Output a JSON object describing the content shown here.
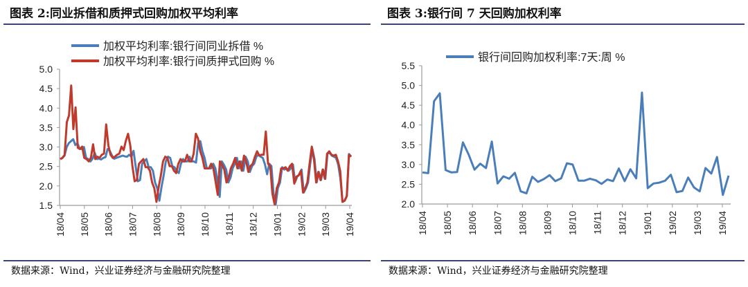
{
  "footer_source": "数据来源：Wind，兴业证券经济与金融研究院整理",
  "colors": {
    "blue": "#4a7ebb",
    "red": "#c0392b",
    "axis": "#9a9a9a",
    "rule": "#3a4373"
  },
  "chart_data": [
    {
      "title": "图表 2:同业拆借和质押式回购加权平均利率",
      "type": "line",
      "x_start": "2018-04",
      "x_end": "2019-04",
      "x_tick_labels": [
        "18/04",
        "18/05",
        "18/06",
        "18/07",
        "18/08",
        "18/09",
        "18/10",
        "18/11",
        "18/12",
        "19/01",
        "19/02",
        "19/03",
        "19/04"
      ],
      "y_tick_labels": [
        "1.5",
        "2.0",
        "2.5",
        "3.0",
        "3.5",
        "4.0",
        "4.5",
        "5.0"
      ],
      "ylim": [
        1.5,
        5.0
      ],
      "grid": false,
      "legend_position": "top",
      "series": [
        {
          "name": "加权平均利率:银行间同业拆借 %",
          "color": "#4a7ebb",
          "values": [
            2.69,
            2.72,
            2.78,
            3.0,
            3.1,
            3.15,
            3.2,
            3.05,
            3.1,
            2.95,
            2.95,
            3.0,
            2.72,
            2.69,
            2.63,
            2.7,
            2.85,
            2.69,
            2.7,
            2.68,
            2.72,
            2.74,
            2.95,
            2.9,
            2.78,
            2.7,
            2.72,
            2.74,
            2.76,
            2.78,
            2.76,
            2.75,
            2.8,
            2.75,
            2.9,
            2.5,
            2.12,
            2.15,
            2.57,
            2.63,
            2.69,
            2.48,
            2.48,
            2.39,
            2.09,
            1.94,
            1.62,
            1.97,
            2.27,
            2.63,
            2.75,
            2.72,
            2.51,
            2.48,
            2.39,
            2.33,
            2.57,
            2.69,
            2.63,
            2.63,
            2.75,
            2.63,
            2.63,
            2.6,
            3.1,
            3.15,
            2.89,
            2.72,
            2.45,
            2.45,
            2.45,
            2.57,
            2.45,
            2.12,
            1.72,
            2.63,
            2.54,
            2.42,
            2.09,
            2.21,
            2.45,
            2.57,
            2.72,
            2.45,
            2.63,
            2.39,
            2.75,
            2.63,
            2.36,
            2.51,
            2.57,
            2.75,
            2.8,
            2.75,
            2.72,
            2.55,
            2.3,
            2.57,
            2.51,
            1.8,
            1.53,
            1.94,
            2.09,
            2.48,
            2.42,
            2.45,
            2.39,
            2.45,
            2.55,
            2.1,
            2.24,
            2.3,
            2.42,
            1.83,
            1.94,
            2.09,
            2.57,
            2.95,
            2.69,
            2.09,
            2.36,
            2.15,
            2.42,
            2.18,
            2.83,
            2.85,
            2.78,
            2.75,
            2.72,
            2.55,
            2.2,
            1.59,
            1.62,
            1.74,
            2.82,
            2.75
          ]
        },
        {
          "name": "加权平均利率:银行间质押式回购 %",
          "color": "#c0392b",
          "values": [
            2.69,
            2.72,
            2.8,
            3.64,
            3.81,
            4.58,
            3.46,
            4.02,
            2.98,
            2.95,
            3.01,
            2.72,
            2.69,
            2.63,
            2.72,
            3.07,
            2.69,
            2.75,
            2.72,
            2.8,
            2.83,
            3.58,
            3.04,
            2.8,
            2.72,
            2.75,
            2.8,
            2.83,
            3.01,
            2.92,
            3.16,
            3.34,
            3.04,
            2.51,
            2.12,
            2.15,
            2.57,
            2.63,
            2.69,
            2.48,
            2.48,
            2.39,
            2.09,
            1.94,
            1.59,
            1.97,
            2.27,
            2.63,
            2.75,
            2.72,
            2.51,
            2.51,
            2.39,
            2.33,
            2.57,
            2.69,
            2.63,
            2.63,
            2.8,
            2.63,
            2.63,
            2.83,
            3.34,
            3.22,
            2.89,
            2.72,
            2.45,
            2.45,
            2.45,
            2.57,
            2.45,
            2.12,
            1.77,
            2.63,
            2.54,
            2.42,
            2.09,
            2.21,
            2.45,
            2.57,
            2.72,
            2.45,
            2.63,
            2.39,
            2.78,
            2.63,
            2.36,
            2.51,
            2.57,
            2.75,
            2.89,
            2.78,
            2.8,
            2.8,
            3.4,
            2.57,
            2.51,
            1.8,
            1.53,
            1.94,
            2.09,
            2.45,
            2.45,
            2.48,
            2.39,
            2.51,
            2.57,
            2.06,
            2.24,
            2.27,
            2.39,
            1.83,
            1.94,
            2.09,
            2.57,
            3.01,
            2.69,
            2.09,
            2.36,
            2.15,
            2.42,
            2.18,
            2.83,
            2.89,
            2.8,
            2.78,
            2.8,
            2.63,
            2.39,
            1.59,
            1.62,
            1.74,
            2.8,
            2.75
          ]
        }
      ]
    },
    {
      "title": "图表 3:银行间 7 天回购加权利率",
      "type": "line",
      "x_start": "2018-04",
      "x_end": "2019-04",
      "x_tick_labels": [
        "18/04",
        "18/05",
        "18/06",
        "18/07",
        "18/08",
        "18/09",
        "18/10",
        "18/11",
        "18/12",
        "19/01",
        "19/02",
        "19/03",
        "19/04"
      ],
      "y_tick_labels": [
        "2.0",
        "2.5",
        "3.0",
        "3.5",
        "4.0",
        "4.5",
        "5.0",
        "5.5"
      ],
      "ylim": [
        2.0,
        5.5
      ],
      "grid": false,
      "legend_position": "top",
      "series": [
        {
          "name": "银行间回购加权利率:7天:周 %",
          "color": "#4a7ebb",
          "values": [
            2.8,
            2.78,
            4.6,
            4.8,
            2.86,
            2.8,
            2.81,
            3.56,
            3.25,
            2.87,
            3.02,
            2.91,
            3.58,
            2.52,
            2.7,
            2.64,
            2.79,
            2.32,
            2.27,
            2.69,
            2.56,
            2.63,
            2.73,
            2.58,
            2.65,
            3.03,
            3.0,
            2.59,
            2.59,
            2.64,
            2.6,
            2.51,
            2.62,
            2.58,
            2.9,
            2.58,
            2.88,
            2.65,
            4.82,
            2.4,
            2.52,
            2.54,
            2.59,
            2.74,
            2.3,
            2.33,
            2.67,
            2.42,
            2.32,
            2.91,
            2.77,
            3.19,
            2.23,
            2.72
          ]
        }
      ]
    }
  ]
}
